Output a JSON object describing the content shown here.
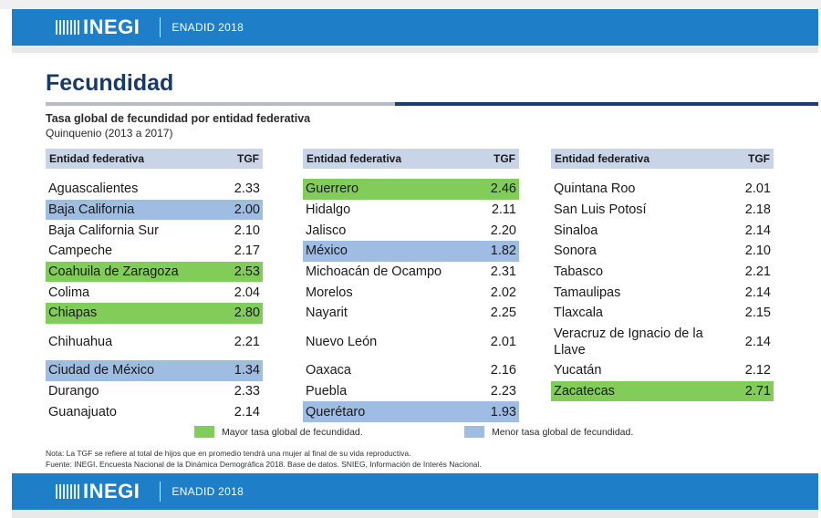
{
  "header": {
    "logo": "INEGI",
    "label": "ENADID 2018"
  },
  "footer": {
    "logo": "INEGI",
    "label": "ENADID 2018"
  },
  "title": "Fecundidad",
  "subtitle": "Tasa global de fecundidad por entidad federativa",
  "period": "Quinquenio (2013 a 2017)",
  "columns": {
    "entity": "Entidad federativa",
    "value": "TGF"
  },
  "colors": {
    "high": "#82cd5a",
    "low": "#9fbde3",
    "brand": "#1e7ec8"
  },
  "tables": [
    [
      {
        "name": "Aguascalientes",
        "tgf": "2.33",
        "hl": ""
      },
      {
        "name": "Baja California",
        "tgf": "2.00",
        "hl": "low"
      },
      {
        "name": "Baja California Sur",
        "tgf": "2.10",
        "hl": ""
      },
      {
        "name": "Campeche",
        "tgf": "2.17",
        "hl": ""
      },
      {
        "name": "Coahuila de Zaragoza",
        "tgf": "2.53",
        "hl": "high"
      },
      {
        "name": "Colima",
        "tgf": "2.04",
        "hl": ""
      },
      {
        "name": "Chiapas",
        "tgf": "2.80",
        "hl": "high"
      },
      {
        "name": "Chihuahua",
        "tgf": "2.21",
        "hl": "",
        "tall": true
      },
      {
        "name": "Ciudad de México",
        "tgf": "1.34",
        "hl": "low"
      },
      {
        "name": "Durango",
        "tgf": "2.33",
        "hl": ""
      },
      {
        "name": "Guanajuato",
        "tgf": "2.14",
        "hl": ""
      }
    ],
    [
      {
        "name": "Guerrero",
        "tgf": "2.46",
        "hl": "high"
      },
      {
        "name": "Hidalgo",
        "tgf": "2.11",
        "hl": ""
      },
      {
        "name": "Jalisco",
        "tgf": "2.20",
        "hl": ""
      },
      {
        "name": "México",
        "tgf": "1.82",
        "hl": "low"
      },
      {
        "name": "Michoacán de Ocampo",
        "tgf": "2.31",
        "hl": ""
      },
      {
        "name": "Morelos",
        "tgf": "2.02",
        "hl": ""
      },
      {
        "name": "Nayarit",
        "tgf": "2.25",
        "hl": ""
      },
      {
        "name": "Nuevo León",
        "tgf": "2.01",
        "hl": "",
        "tall": true
      },
      {
        "name": "Oaxaca",
        "tgf": "2.16",
        "hl": ""
      },
      {
        "name": "Puebla",
        "tgf": "2.23",
        "hl": ""
      },
      {
        "name": "Querétaro",
        "tgf": "1.93",
        "hl": "low"
      }
    ],
    [
      {
        "name": "Quintana Roo",
        "tgf": "2.01",
        "hl": ""
      },
      {
        "name": "San Luis Potosí",
        "tgf": "2.18",
        "hl": ""
      },
      {
        "name": "Sinaloa",
        "tgf": "2.14",
        "hl": ""
      },
      {
        "name": "Sonora",
        "tgf": "2.10",
        "hl": ""
      },
      {
        "name": "Tabasco",
        "tgf": "2.21",
        "hl": ""
      },
      {
        "name": "Tamaulipas",
        "tgf": "2.14",
        "hl": ""
      },
      {
        "name": "Tlaxcala",
        "tgf": "2.15",
        "hl": ""
      },
      {
        "name": "Veracruz de Ignacio de la Llave",
        "tgf": "2.14",
        "hl": "",
        "tall": true
      },
      {
        "name": "Yucatán",
        "tgf": "2.12",
        "hl": ""
      },
      {
        "name": "Zacatecas",
        "tgf": "2.71",
        "hl": "high"
      }
    ]
  ],
  "legend": {
    "high": "Mayor tasa global de fecundidad.",
    "low": "Menor tasa global de fecundidad."
  },
  "notes": {
    "note": "Nota: La TGF se refiere al total de hijos que en promedio tendrá una mujer al final de su vida reproductiva.",
    "source": "Fuente: INEGI. Encuesta Nacional de la Dinámica Demográfica 2018. Base de datos. SNIEG, Información de Interés Nacional."
  }
}
